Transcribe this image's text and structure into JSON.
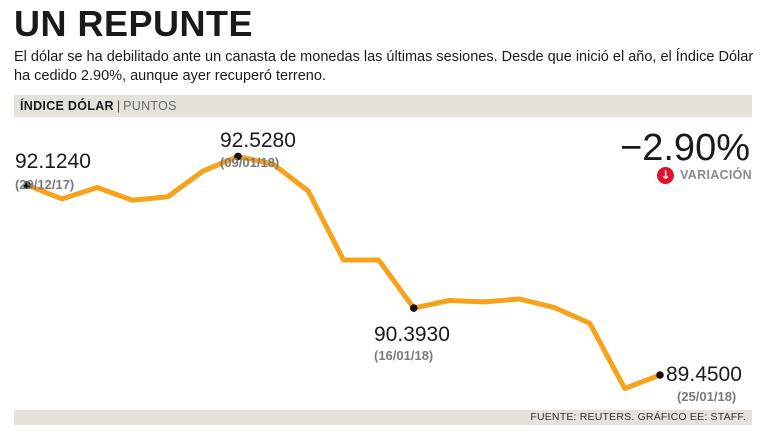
{
  "header": {
    "title": "UN REPUNTE",
    "subtitle": "El dólar se ha debilitado ante un canasta de monedas las últimas sesiones. Desde que inició el año, el Índice Dólar ha cedido 2.90%, aunque ayer recuperó terreno."
  },
  "chart_data": {
    "type": "line",
    "title": "ÍNDICE DÓLAR",
    "ylabel": "PUNTOS",
    "line_color": "#f7a21b",
    "ylim": [
      89.0,
      92.9
    ],
    "series": [
      {
        "values": [
          92.124,
          91.93,
          92.09,
          91.91,
          91.96,
          92.32,
          92.528,
          92.42,
          92.04,
          91.07,
          91.07,
          90.393,
          90.5,
          90.48,
          90.52,
          90.4,
          90.18,
          89.26,
          89.45
        ]
      }
    ],
    "annotations": [
      {
        "index": 0,
        "value": "92.1240",
        "date": "(29/12/17)"
      },
      {
        "index": 6,
        "value": "92.5280",
        "date": "(09/01/18)"
      },
      {
        "index": 11,
        "value": "90.3930",
        "date": "(16/01/18)"
      },
      {
        "index": 18,
        "value": "89.4500",
        "date": "(25/01/18)"
      }
    ],
    "variation": {
      "value": "−2.90%",
      "label": "VARIACIÓN",
      "icon": "down-arrow-icon",
      "icon_color": "#e0132b"
    },
    "grid": false,
    "legend": "none"
  },
  "source": "FUENTE: REUTERS. GRÁFICO EE: STAFF."
}
